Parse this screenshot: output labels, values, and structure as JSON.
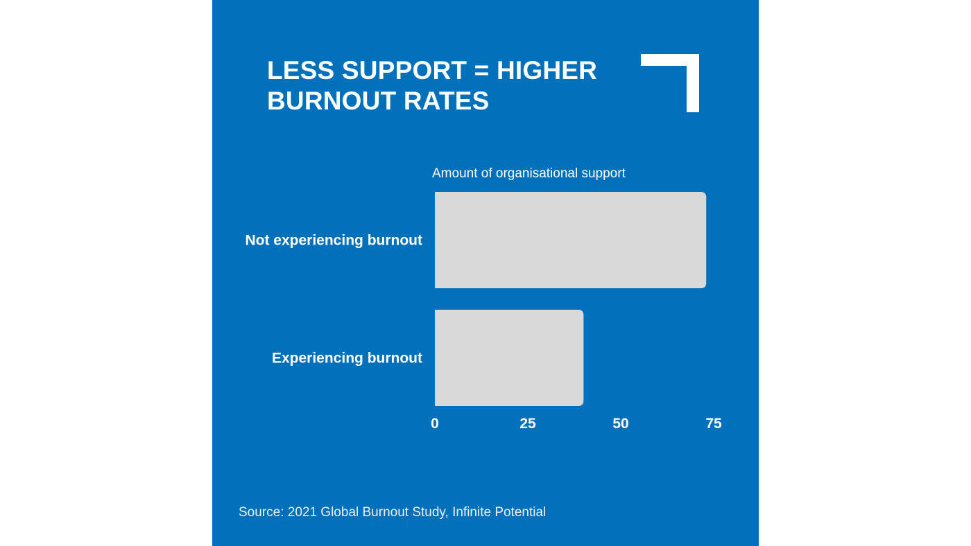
{
  "page": {
    "title": "LESS SUPPORT = HIGHER BURNOUT RATES",
    "source": "Source: 2021 Global Burnout Study, Infinite Potential",
    "background_color": "#0270ba",
    "bar_color": "#d9d9d9",
    "text_color": "#ffffff",
    "decoration_icon": "corner-bracket-icon"
  },
  "chart_data": {
    "type": "bar",
    "orientation": "horizontal",
    "title": "LESS SUPPORT = HIGHER BURNOUT RATES",
    "xlabel": "Amount of organisational support",
    "ylabel": "",
    "categories": [
      "Not experiencing burnout",
      "Experiencing burnout"
    ],
    "values": [
      73,
      40
    ],
    "xlim": [
      0,
      75
    ],
    "xticks": [
      0,
      25,
      50,
      75
    ],
    "grid": false,
    "legend": "none"
  }
}
